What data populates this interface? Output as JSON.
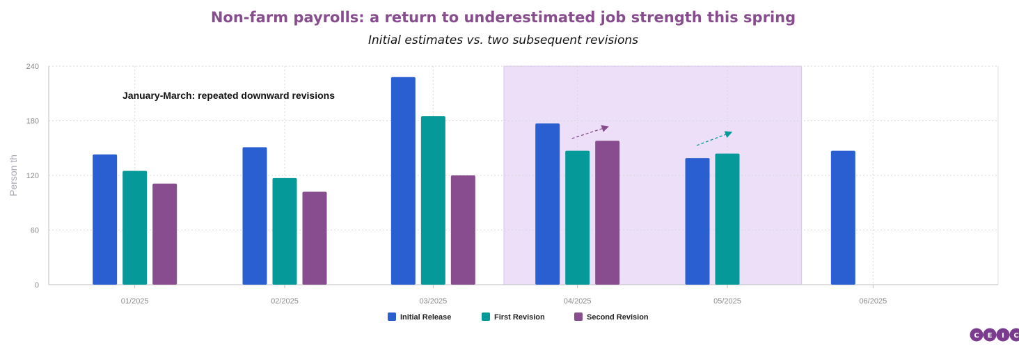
{
  "chart_data": {
    "type": "bar",
    "title": "Non-farm payrolls: a return to underestimated job strength this spring",
    "subtitle": "Initial estimates vs. two subsequent revisions",
    "ylabel": "Person th",
    "xlabel": "",
    "ylim": [
      0,
      240
    ],
    "yticks": [
      0,
      60,
      120,
      180,
      240
    ],
    "grid": true,
    "categories": [
      "01/2025",
      "02/2025",
      "03/2025",
      "04/2025",
      "05/2025",
      "06/2025"
    ],
    "series": [
      {
        "name": "Initial Release",
        "color": "#2a5fd1",
        "values": [
          143,
          151,
          228,
          177,
          139,
          147
        ]
      },
      {
        "name": "First Revision",
        "color": "#05999a",
        "values": [
          125,
          117,
          185,
          147,
          144,
          null
        ]
      },
      {
        "name": "Second Revision",
        "color": "#884d8e",
        "values": [
          111,
          102,
          120,
          158,
          null,
          null
        ]
      }
    ],
    "highlight": {
      "from": "04/2025",
      "to": "05/2025",
      "color": "#ecdff7"
    },
    "annotations": [
      {
        "text": "January-March: repeated downward revisions"
      }
    ],
    "legend_position": "bottom-center"
  },
  "logo": {
    "letters": [
      "C",
      "E",
      "I",
      "C"
    ],
    "color": "#7b3c8f"
  }
}
